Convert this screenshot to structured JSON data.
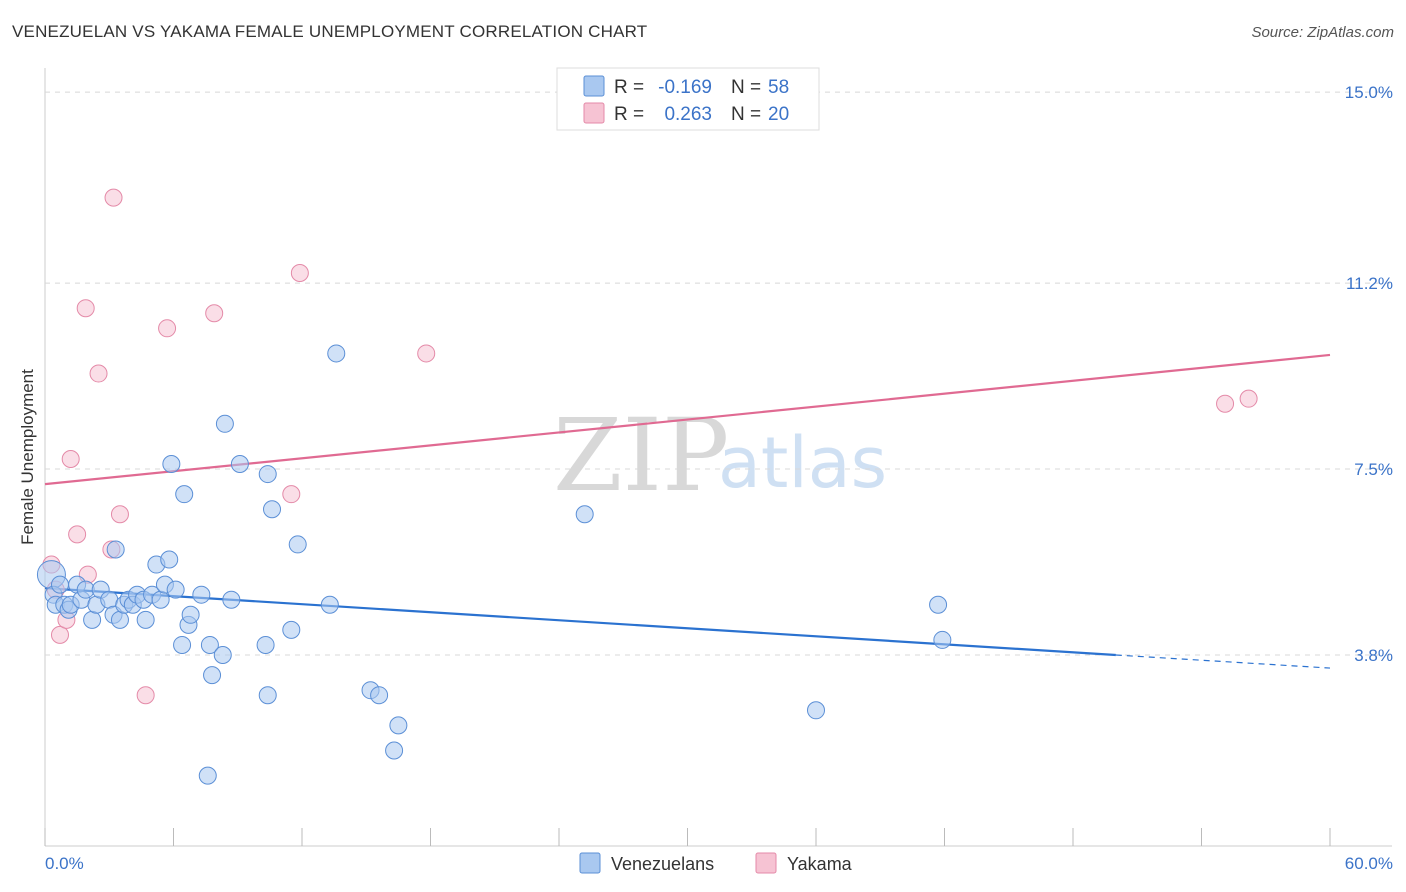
{
  "title": "VENEZUELAN VS YAKAMA FEMALE UNEMPLOYMENT CORRELATION CHART",
  "source": "Source: ZipAtlas.com",
  "watermark": {
    "zip": "ZIP",
    "atlas": "atlas"
  },
  "legend": {
    "rows": [
      {
        "r_label": "R =",
        "r_value": "-0.169",
        "n_label": "N =",
        "n_value": "58"
      },
      {
        "r_label": "R =",
        "r_value": "0.263",
        "n_label": "N =",
        "n_value": "20"
      }
    ]
  },
  "bottom_legend": [
    "Venezuelans",
    "Yakama"
  ],
  "colors": {
    "venezuelans_fill": "#a9c8f0",
    "venezuelans_stroke": "#5b8fd6",
    "venezuelans_line": "#2b72d0",
    "yakama_fill": "#f6c3d3",
    "yakama_stroke": "#e48aa8",
    "yakama_line": "#e06a92"
  },
  "chart_data": {
    "type": "scatter",
    "title": "VENEZUELAN VS YAKAMA FEMALE UNEMPLOYMENT CORRELATION CHART",
    "xlabel": "",
    "ylabel": "Female Unemployment",
    "xlim": [
      0,
      60
    ],
    "ylim": [
      0,
      15.3
    ],
    "x_tick_labels": [
      "0.0%",
      "60.0%"
    ],
    "y_ticks": [
      3.8,
      7.5,
      11.2,
      15.0
    ],
    "y_tick_labels": [
      "3.8%",
      "7.5%",
      "11.2%",
      "15.0%"
    ],
    "series": [
      {
        "name": "Venezuelans",
        "points": [
          [
            0.3,
            5.4
          ],
          [
            0.4,
            5.0
          ],
          [
            0.5,
            4.8
          ],
          [
            0.7,
            5.2
          ],
          [
            0.9,
            4.8
          ],
          [
            1.1,
            4.7
          ],
          [
            1.2,
            4.8
          ],
          [
            1.5,
            5.2
          ],
          [
            1.7,
            4.9
          ],
          [
            1.9,
            5.1
          ],
          [
            2.2,
            4.5
          ],
          [
            2.4,
            4.8
          ],
          [
            2.6,
            5.1
          ],
          [
            3.0,
            4.9
          ],
          [
            3.2,
            4.6
          ],
          [
            3.3,
            5.9
          ],
          [
            3.5,
            4.5
          ],
          [
            3.7,
            4.8
          ],
          [
            3.9,
            4.9
          ],
          [
            4.1,
            4.8
          ],
          [
            4.3,
            5.0
          ],
          [
            4.6,
            4.9
          ],
          [
            4.7,
            4.5
          ],
          [
            5.0,
            5.0
          ],
          [
            5.2,
            5.6
          ],
          [
            5.4,
            4.9
          ],
          [
            5.6,
            5.2
          ],
          [
            5.8,
            5.7
          ],
          [
            5.9,
            7.6
          ],
          [
            6.1,
            5.1
          ],
          [
            6.4,
            4.0
          ],
          [
            6.5,
            7.0
          ],
          [
            6.7,
            4.4
          ],
          [
            6.8,
            4.6
          ],
          [
            7.3,
            5.0
          ],
          [
            7.6,
            1.4
          ],
          [
            7.7,
            4.0
          ],
          [
            7.8,
            3.4
          ],
          [
            8.3,
            3.8
          ],
          [
            8.4,
            8.4
          ],
          [
            8.7,
            4.9
          ],
          [
            9.1,
            7.6
          ],
          [
            10.3,
            4.0
          ],
          [
            10.4,
            3.0
          ],
          [
            10.4,
            7.4
          ],
          [
            10.6,
            6.7
          ],
          [
            11.5,
            4.3
          ],
          [
            11.8,
            6.0
          ],
          [
            13.3,
            4.8
          ],
          [
            13.6,
            9.8
          ],
          [
            15.2,
            3.1
          ],
          [
            15.6,
            3.0
          ],
          [
            16.3,
            1.9
          ],
          [
            16.5,
            2.4
          ],
          [
            25.2,
            6.6
          ],
          [
            36.0,
            2.7
          ],
          [
            41.7,
            4.8
          ],
          [
            41.9,
            4.1
          ]
        ],
        "trend": {
          "x": [
            0,
            50
          ],
          "y": [
            5.13,
            3.8
          ],
          "dashed_extension": {
            "x": [
              50,
              60
            ],
            "y": [
              3.8,
              3.54
            ]
          }
        }
      },
      {
        "name": "Yakama",
        "points": [
          [
            0.3,
            5.6
          ],
          [
            0.5,
            5.1
          ],
          [
            0.7,
            4.2
          ],
          [
            1.0,
            4.5
          ],
          [
            1.2,
            7.7
          ],
          [
            1.5,
            6.2
          ],
          [
            1.9,
            10.7
          ],
          [
            2.0,
            5.4
          ],
          [
            2.5,
            9.4
          ],
          [
            3.1,
            5.9
          ],
          [
            3.2,
            12.9
          ],
          [
            3.5,
            6.6
          ],
          [
            4.7,
            3.0
          ],
          [
            5.7,
            10.3
          ],
          [
            7.9,
            10.6
          ],
          [
            11.5,
            7.0
          ],
          [
            11.9,
            11.4
          ],
          [
            17.8,
            9.8
          ],
          [
            55.1,
            8.8
          ],
          [
            56.2,
            8.9
          ]
        ],
        "trend": {
          "x": [
            0,
            60
          ],
          "y": [
            7.2,
            9.77
          ]
        }
      }
    ]
  }
}
